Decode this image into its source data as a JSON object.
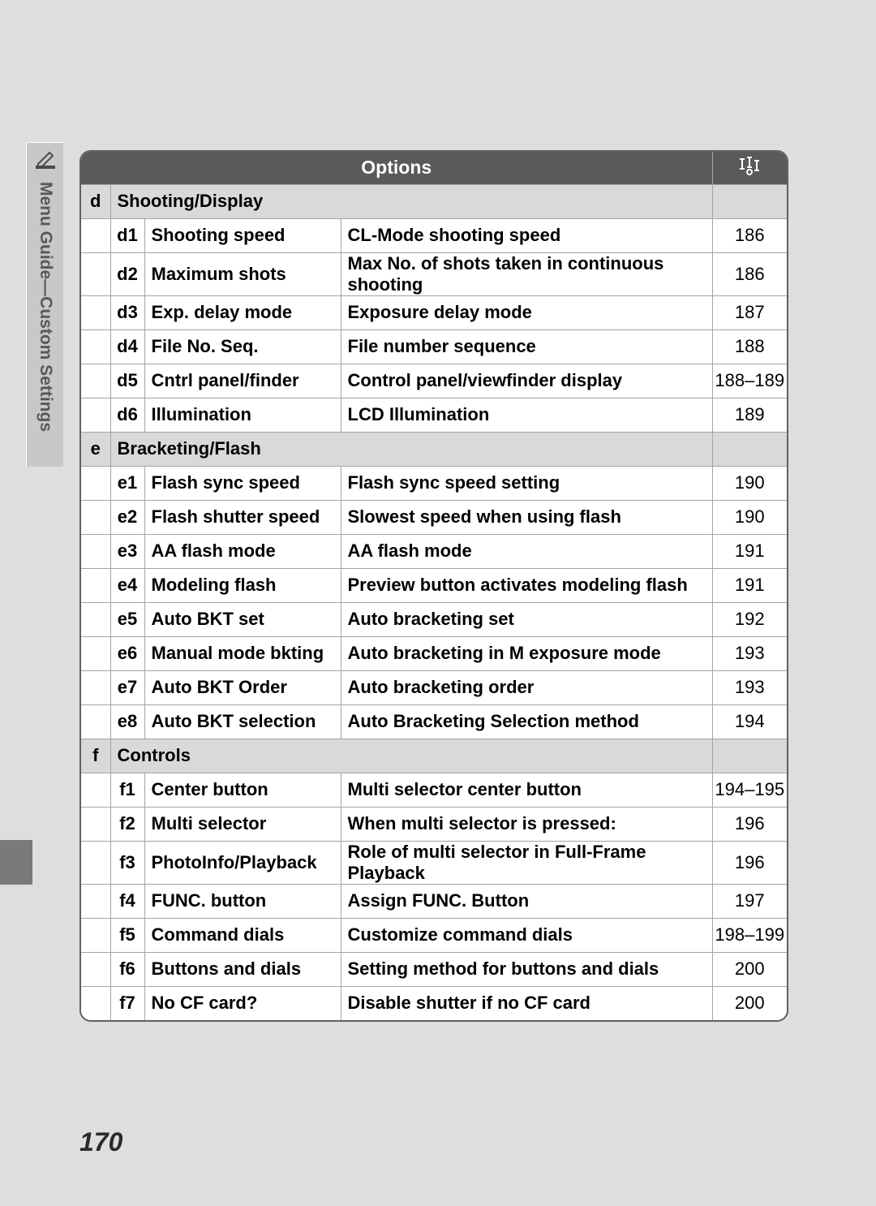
{
  "sideTab": {
    "label": "Menu Guide—Custom Settings"
  },
  "header": {
    "options_label": "Options"
  },
  "sections": [
    {
      "letter": "d",
      "title": "Shooting/Display",
      "rows": [
        {
          "code": "d1",
          "name": "Shooting speed",
          "desc": "CL-Mode shooting speed",
          "page": "186"
        },
        {
          "code": "d2",
          "name": "Maximum shots",
          "desc": "Max No. of shots taken in continuous shooting",
          "page": "186"
        },
        {
          "code": "d3",
          "name": "Exp. delay mode",
          "desc": "Exposure delay mode",
          "page": "187"
        },
        {
          "code": "d4",
          "name": "File No. Seq.",
          "desc": "File number sequence",
          "page": "188"
        },
        {
          "code": "d5",
          "name": "Cntrl panel/finder",
          "desc": "Control panel/viewfinder display",
          "page": "188–189"
        },
        {
          "code": "d6",
          "name": "Illumination",
          "desc": "LCD Illumination",
          "page": "189"
        }
      ]
    },
    {
      "letter": "e",
      "title": "Bracketing/Flash",
      "rows": [
        {
          "code": "e1",
          "name": "Flash sync speed",
          "desc": "Flash sync speed setting",
          "page": "190"
        },
        {
          "code": "e2",
          "name": "Flash shutter speed",
          "desc": "Slowest speed when using flash",
          "page": "190"
        },
        {
          "code": "e3",
          "name": "AA flash mode",
          "desc": "AA flash mode",
          "page": "191"
        },
        {
          "code": "e4",
          "name": "Modeling flash",
          "desc": "Preview button activates modeling flash",
          "page": "191"
        },
        {
          "code": "e5",
          "name": "Auto BKT set",
          "desc": "Auto bracketing set",
          "page": "192"
        },
        {
          "code": "e6",
          "name": "Manual mode bkting",
          "desc": "Auto bracketing in M exposure mode",
          "page": "193"
        },
        {
          "code": "e7",
          "name": "Auto BKT Order",
          "desc": "Auto bracketing order",
          "page": "193"
        },
        {
          "code": "e8",
          "name": "Auto BKT selection",
          "desc": "Auto Bracketing Selection method",
          "page": "194"
        }
      ]
    },
    {
      "letter": "f",
      "title": "Controls",
      "rows": [
        {
          "code": "f1",
          "name": "Center button",
          "desc": "Multi selector center button",
          "page": "194–195"
        },
        {
          "code": "f2",
          "name": "Multi selector",
          "desc": "When multi selector is pressed:",
          "page": "196"
        },
        {
          "code": "f3",
          "name": "PhotoInfo/Playback",
          "desc": "Role of multi selector in Full-Frame Playback",
          "page": "196"
        },
        {
          "code": "f4",
          "name": "FUNC. button",
          "desc": "Assign FUNC. Button",
          "page": "197"
        },
        {
          "code": "f5",
          "name": "Command dials",
          "desc": "Customize command dials",
          "page": "198–199"
        },
        {
          "code": "f6",
          "name": "Buttons and dials",
          "desc": "Setting method for buttons and dials",
          "page": "200"
        },
        {
          "code": "f7",
          "name": "No CF card?",
          "desc": "Disable shutter if no CF card",
          "page": "200"
        }
      ]
    }
  ],
  "pageNumber": "170",
  "colors": {
    "page_bg": "#dedede",
    "header_bg": "#5a5a5a",
    "header_fg": "#ffffff",
    "section_bg": "#d9d9d9",
    "border": "#a4a4a4"
  }
}
